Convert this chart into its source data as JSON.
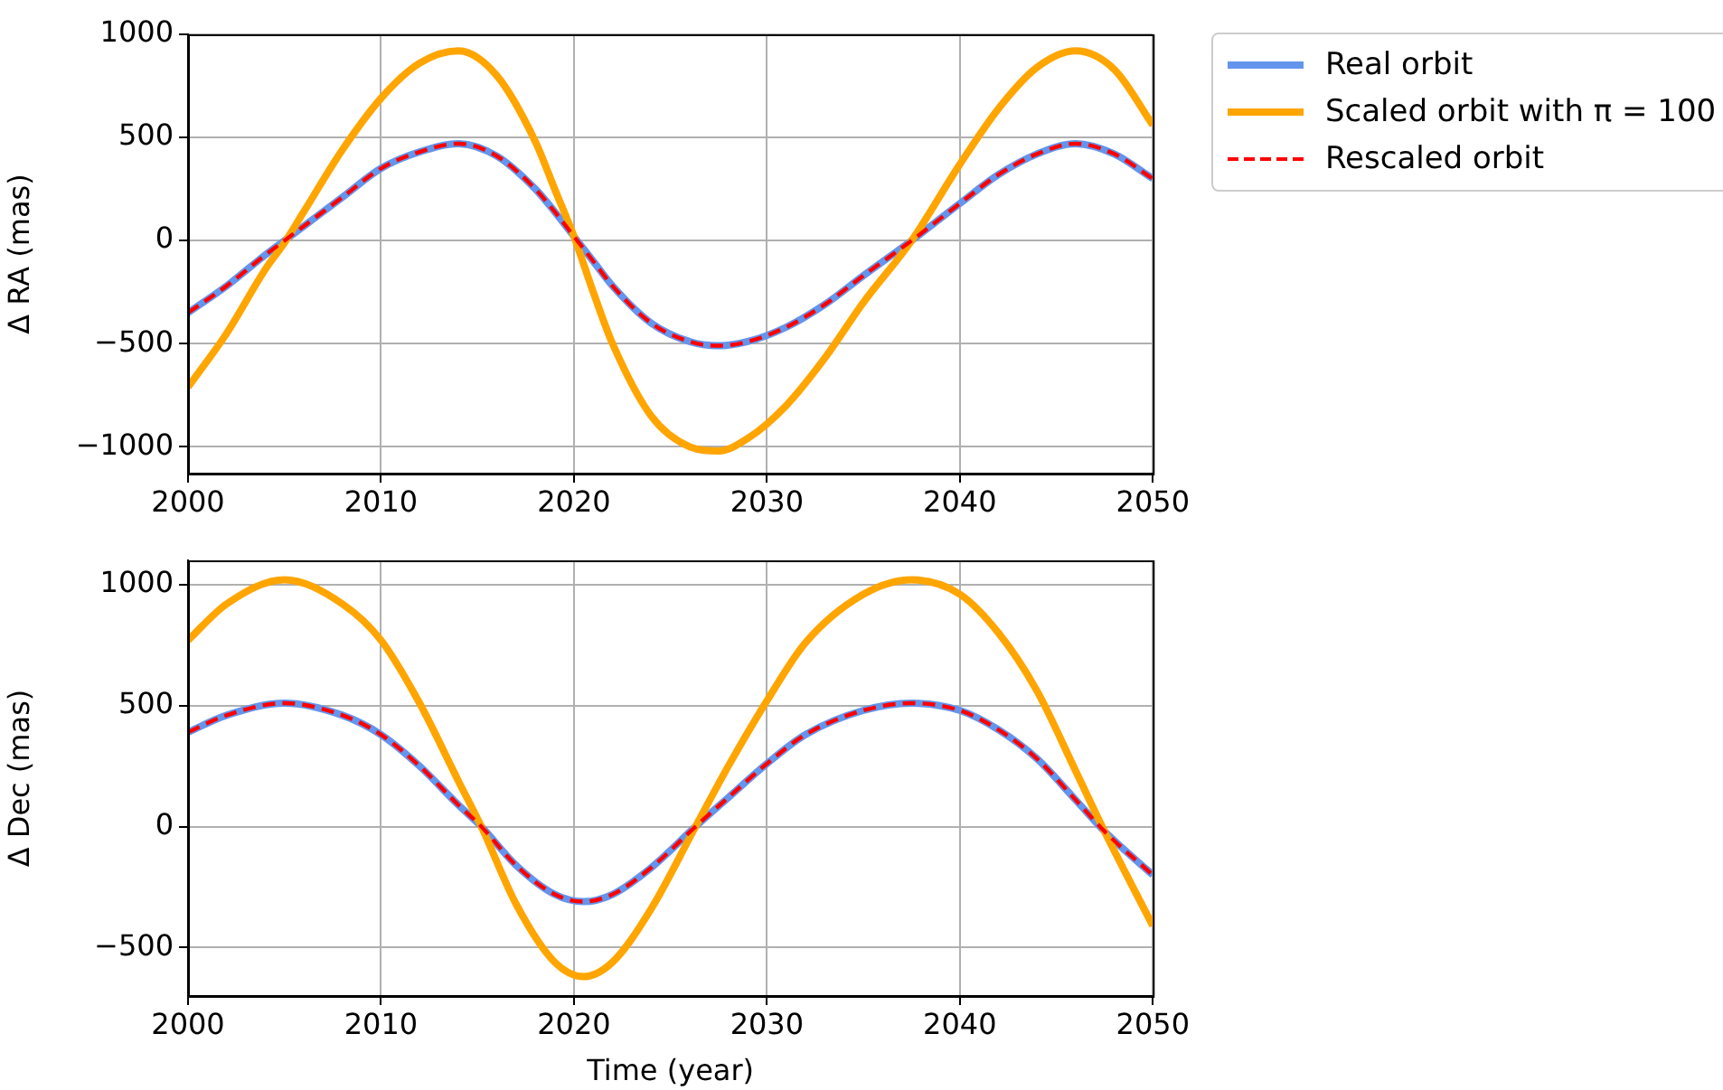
{
  "chart_data": [
    {
      "type": "line",
      "ylabel": "Δ RA (mas)",
      "xlim": [
        2000,
        2050
      ],
      "xticks": [
        2000,
        2010,
        2020,
        2030,
        2040,
        2050
      ],
      "ylim": [
        -1130,
        1000
      ],
      "yticks": [
        -1000,
        -500,
        0,
        500,
        1000
      ],
      "grid": true,
      "legend": "top right",
      "marker": "none",
      "series": [
        {
          "name": "Real orbit",
          "color": "#6495ed",
          "line_style": "solid",
          "x": [
            2000,
            2002,
            2004,
            2005,
            2006,
            2008,
            2010,
            2012,
            2014,
            2016,
            2018,
            2019,
            2020,
            2021,
            2022,
            2024,
            2026,
            2027.5,
            2029,
            2031,
            2033,
            2035,
            2037.5,
            2040,
            2042,
            2044,
            2046,
            2048,
            2050
          ],
          "values": [
            -350,
            -220,
            -70,
            0,
            70,
            210,
            350,
            430,
            470,
            410,
            250,
            140,
            20,
            -100,
            -220,
            -400,
            -490,
            -510,
            -490,
            -420,
            -310,
            -170,
            0,
            180,
            320,
            420,
            470,
            420,
            300
          ]
        },
        {
          "name": "Scaled orbit with π = 100",
          "color": "#ffa500",
          "line_style": "solid",
          "x": [
            2000,
            2002,
            2004,
            2005,
            2006,
            2008,
            2010,
            2012,
            2014,
            2016,
            2018,
            2019,
            2020,
            2021,
            2022,
            2024,
            2026,
            2027.5,
            2029,
            2031,
            2033,
            2035,
            2037.5,
            2040,
            2042,
            2044,
            2046,
            2048,
            2050
          ],
          "values": [
            -710,
            -450,
            -140,
            -10,
            140,
            440,
            690,
            860,
            920,
            800,
            480,
            250,
            20,
            -250,
            -500,
            -850,
            -1000,
            -1020,
            -960,
            -800,
            -570,
            -300,
            0,
            370,
            640,
            840,
            920,
            830,
            560
          ]
        },
        {
          "name": "Rescaled orbit",
          "color": "#ff0000",
          "line_style": "dashed",
          "x": [
            2000,
            2002,
            2004,
            2005,
            2006,
            2008,
            2010,
            2012,
            2014,
            2016,
            2018,
            2019,
            2020,
            2021,
            2022,
            2024,
            2026,
            2027.5,
            2029,
            2031,
            2033,
            2035,
            2037.5,
            2040,
            2042,
            2044,
            2046,
            2048,
            2050
          ],
          "values": [
            -350,
            -220,
            -70,
            0,
            70,
            210,
            350,
            430,
            470,
            410,
            250,
            140,
            20,
            -100,
            -220,
            -400,
            -490,
            -510,
            -490,
            -420,
            -310,
            -170,
            0,
            180,
            320,
            420,
            470,
            420,
            300
          ]
        }
      ]
    },
    {
      "type": "line",
      "xlabel": "Time (year)",
      "ylabel": "Δ Dec (mas)",
      "xlim": [
        2000,
        2050
      ],
      "xticks": [
        2000,
        2010,
        2020,
        2030,
        2040,
        2050
      ],
      "ylim": [
        -700,
        1100
      ],
      "yticks": [
        -500,
        0,
        500,
        1000
      ],
      "grid": true,
      "marker": "none",
      "series": [
        {
          "color": "#6495ed",
          "line_style": "solid",
          "x": [
            2000,
            2002,
            2005,
            2008,
            2010,
            2012,
            2014,
            2015.2,
            2017,
            2019,
            2020.5,
            2022,
            2024,
            2026.3,
            2028,
            2030,
            2032,
            2035,
            2037.5,
            2040,
            2042,
            2044,
            2046,
            2047.5,
            2050
          ],
          "values": [
            390,
            460,
            510,
            460,
            380,
            250,
            90,
            0,
            -160,
            -280,
            -310,
            -280,
            -170,
            0,
            120,
            260,
            380,
            480,
            510,
            480,
            400,
            280,
            110,
            -20,
            -200
          ]
        },
        {
          "color": "#ffa500",
          "line_style": "solid",
          "x": [
            2000,
            2002,
            2005,
            2008,
            2010,
            2012,
            2014,
            2015.2,
            2017,
            2019,
            2020.5,
            2022,
            2024,
            2026.3,
            2028,
            2030,
            2032,
            2035,
            2037.5,
            2040,
            2042,
            2044,
            2046,
            2047.5,
            2050
          ],
          "values": [
            770,
            920,
            1020,
            920,
            770,
            510,
            190,
            0,
            -320,
            -560,
            -620,
            -560,
            -340,
            0,
            250,
            520,
            760,
            960,
            1020,
            960,
            800,
            560,
            230,
            -20,
            -410
          ]
        },
        {
          "color": "#ff0000",
          "line_style": "dashed",
          "x": [
            2000,
            2002,
            2005,
            2008,
            2010,
            2012,
            2014,
            2015.2,
            2017,
            2019,
            2020.5,
            2022,
            2024,
            2026.3,
            2028,
            2030,
            2032,
            2035,
            2037.5,
            2040,
            2042,
            2044,
            2046,
            2047.5,
            2050
          ],
          "values": [
            390,
            460,
            510,
            460,
            380,
            250,
            90,
            0,
            -160,
            -280,
            -310,
            -280,
            -170,
            0,
            120,
            260,
            380,
            480,
            510,
            480,
            400,
            280,
            110,
            -20,
            -200
          ]
        }
      ]
    }
  ]
}
